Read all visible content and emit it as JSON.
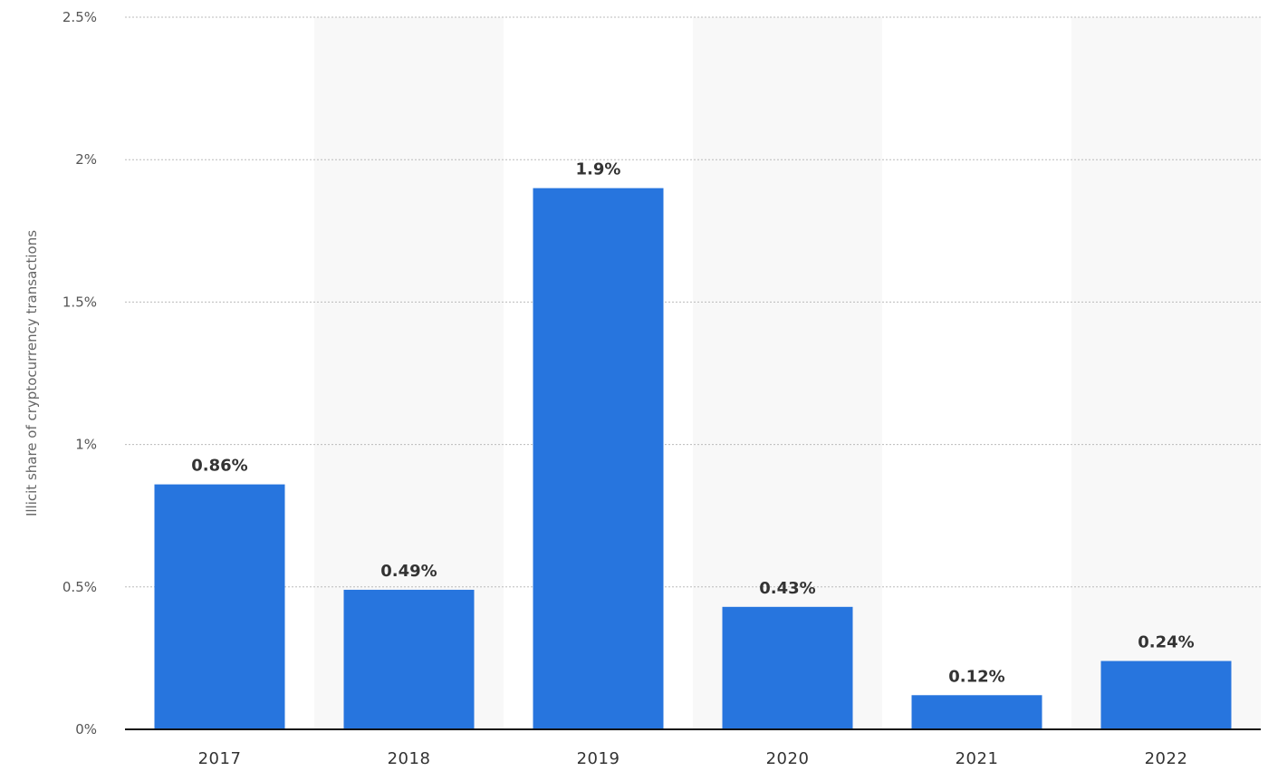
{
  "chart_data": {
    "type": "bar",
    "categories": [
      "2017",
      "2018",
      "2019",
      "2020",
      "2021",
      "2022"
    ],
    "values": [
      0.86,
      0.49,
      1.9,
      0.43,
      0.12,
      0.24
    ],
    "data_labels": [
      "0.86%",
      "0.49%",
      "1.9%",
      "0.43%",
      "0.12%",
      "0.24%"
    ],
    "ylabel": "Illicit share of cryptocurrency transactions",
    "xlabel": "",
    "ylim": [
      0,
      2.5
    ],
    "yticks": [
      0,
      0.5,
      1,
      1.5,
      2,
      2.5
    ],
    "ytick_labels": [
      "0%",
      "0.5%",
      "1%",
      "1.5%",
      "2%",
      "2.5%"
    ],
    "grid": true,
    "alternating_band_shading": true,
    "colors": {
      "bar": "#2775de",
      "band": "#f8f8f8",
      "grid": "#bbbbbb",
      "baseline": "#111111"
    }
  }
}
